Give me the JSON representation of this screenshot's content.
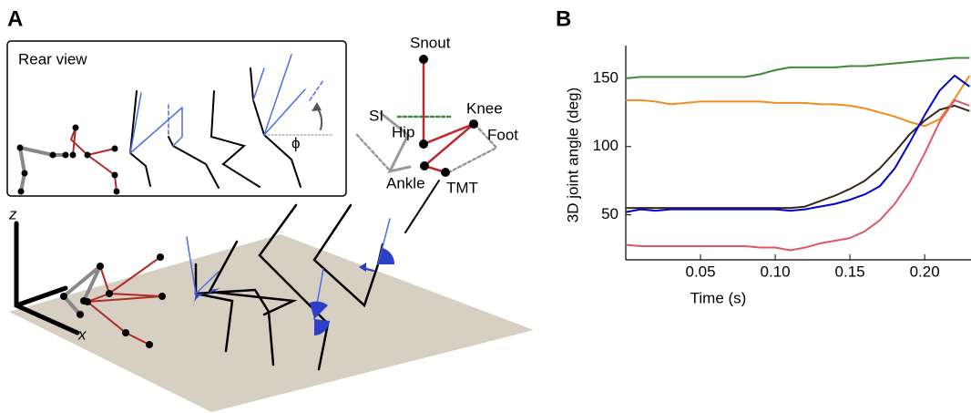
{
  "panels": {
    "a": "A",
    "b": "B"
  },
  "diagram": {
    "inset_title": "Rear view",
    "phi": "ϕ",
    "labels": {
      "snout": "Snout",
      "si": "SI",
      "hip": "Hip",
      "knee": "Knee",
      "foot": "Foot",
      "ankle": "Ankle",
      "tmt": "TMT"
    },
    "axes": {
      "z": "z",
      "x": "x"
    }
  },
  "chart_data": {
    "type": "line",
    "xlabel": "Time (s)",
    "ylabel": "3D joint angle (deg)",
    "x": [
      0,
      0.01,
      0.02,
      0.03,
      0.04,
      0.05,
      0.06,
      0.07,
      0.08,
      0.09,
      0.1,
      0.11,
      0.12,
      0.13,
      0.14,
      0.15,
      0.16,
      0.17,
      0.18,
      0.19,
      0.2,
      0.21,
      0.22,
      0.23
    ],
    "series": [
      {
        "color": "#3d8b37",
        "values": [
          150,
          151,
          151,
          151,
          151,
          151,
          151,
          151,
          151,
          153,
          156,
          158,
          158,
          158,
          158,
          159,
          159,
          160,
          161,
          162,
          163,
          164,
          165,
          165
        ]
      },
      {
        "color": "#f28c1e",
        "values": [
          134,
          134,
          133,
          131,
          132,
          133,
          133,
          133,
          133,
          133,
          132,
          132,
          132,
          131,
          131,
          130,
          128,
          125,
          122,
          118,
          115,
          120,
          135,
          152
        ]
      },
      {
        "color": "#3b2816",
        "values": [
          55,
          55,
          55,
          55,
          55,
          55,
          55,
          55,
          55,
          55,
          55,
          55,
          56,
          60,
          64,
          69,
          75,
          84,
          96,
          109,
          119,
          127,
          130,
          126
        ]
      },
      {
        "color": "#0000d0",
        "values": [
          52,
          54,
          53,
          54,
          54,
          54,
          54,
          54,
          54,
          54,
          54,
          53,
          54,
          56,
          58,
          61,
          65,
          71,
          84,
          103,
          123,
          141,
          152,
          144
        ]
      },
      {
        "color": "#e0566b",
        "values": [
          28,
          27,
          27,
          27,
          27,
          27,
          27,
          27,
          27,
          26,
          26,
          24,
          26,
          29,
          31,
          33,
          38,
          46,
          58,
          74,
          95,
          118,
          134,
          130
        ]
      }
    ],
    "xlim": [
      0,
      0.231
    ],
    "ylim": [
      17,
      174
    ],
    "xticks": [
      0.05,
      {
        "value": 0.1,
        "label": "0.10"
      },
      0.15,
      {
        "value": 0.2,
        "label": "0.20"
      }
    ],
    "yticks": [
      50,
      100,
      150
    ]
  }
}
